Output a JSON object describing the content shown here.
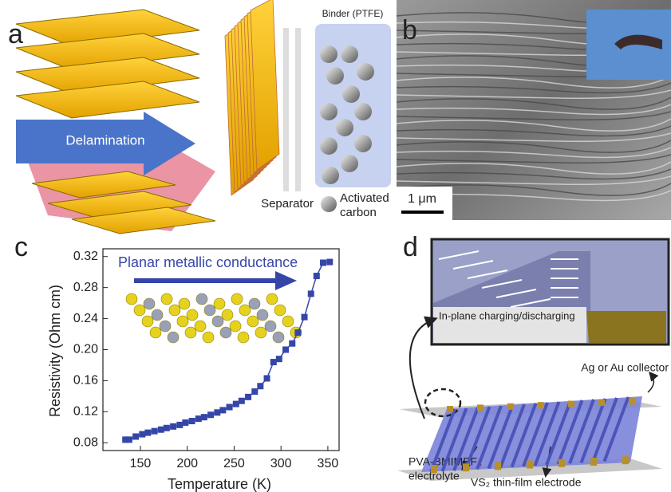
{
  "panel_a": {
    "label": "a",
    "delamination": "Delamination",
    "binder": "Binder (PTFE)",
    "separator": "Separator",
    "activated_carbon": [
      "Activated",
      "carbon"
    ]
  },
  "panel_b": {
    "label": "b",
    "scale_bar": "1 μm"
  },
  "chart_data": {
    "type": "line",
    "label": "c",
    "annotation": "Planar metallic conductance",
    "x_label": "Temperature (K)",
    "y_label": "Resistivity (Ohm cm)",
    "x": [
      134,
      138,
      145,
      152,
      158,
      165,
      172,
      178,
      185,
      192,
      198,
      205,
      212,
      218,
      225,
      232,
      238,
      245,
      252,
      258,
      265,
      272,
      278,
      285,
      292,
      298,
      305,
      312,
      318,
      325,
      332,
      338,
      345,
      352
    ],
    "series": [
      {
        "color": "#3546a8",
        "values": [
          0.084,
          0.084,
          0.088,
          0.091,
          0.093,
          0.095,
          0.097,
          0.099,
          0.101,
          0.103,
          0.106,
          0.108,
          0.111,
          0.113,
          0.116,
          0.119,
          0.122,
          0.126,
          0.13,
          0.134,
          0.139,
          0.146,
          0.153,
          0.163,
          0.184,
          0.188,
          0.2,
          0.208,
          0.222,
          0.242,
          0.272,
          0.295,
          0.312,
          0.313
        ]
      }
    ],
    "xlim": [
      110,
      362
    ],
    "ylim": [
      0.07,
      0.33
    ],
    "xticks": [
      150,
      200,
      250,
      300,
      350
    ],
    "yticks": [
      0.08,
      0.12,
      0.16,
      {
        "value": 0.2,
        "label": "0.20"
      },
      0.24,
      0.28,
      0.32
    ]
  },
  "panel_d": {
    "label": "d",
    "inset": "In-plane charging/discharging",
    "collector": "Ag or Au collector",
    "electrolyte": [
      "PVA-BMIMBF₄",
      "electrolyte"
    ],
    "electrode": "VS₂ thin-film electrode"
  }
}
